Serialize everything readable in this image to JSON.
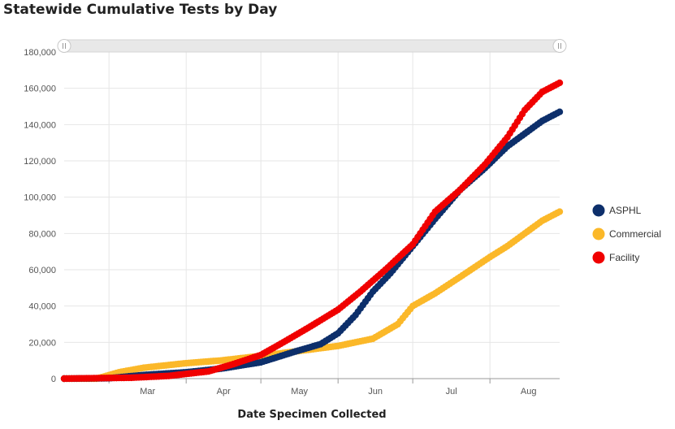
{
  "title": "Statewide Cumulative Tests by Day",
  "chart_data": {
    "type": "scatter",
    "title": "Statewide Cumulative Tests by Day",
    "xlabel": "Date Specimen Collected",
    "ylabel": "",
    "ylim": [
      0,
      180000
    ],
    "yticks": [
      "0",
      "20,000",
      "40,000",
      "60,000",
      "80,000",
      "100,000",
      "120,000",
      "140,000",
      "160,000",
      "180,000"
    ],
    "xlim": [
      "2020-02-12",
      "2020-08-29"
    ],
    "xticks": [
      {
        "label": "Mar",
        "date": "2020-03-01"
      },
      {
        "label": "Apr",
        "date": "2020-04-01"
      },
      {
        "label": "May",
        "date": "2020-05-01"
      },
      {
        "label": "Jun",
        "date": "2020-06-01"
      },
      {
        "label": "Jul",
        "date": "2020-07-01"
      },
      {
        "label": "Aug",
        "date": "2020-08-01"
      }
    ],
    "grid": true,
    "legend_position": "right",
    "range_slider": true,
    "series": [
      {
        "name": "ASPHL",
        "color": "#0d2f6b",
        "points": [
          [
            "2020-02-12",
            0
          ],
          [
            "2020-03-01",
            200
          ],
          [
            "2020-03-15",
            2000
          ],
          [
            "2020-04-01",
            3500
          ],
          [
            "2020-04-15",
            5500
          ],
          [
            "2020-05-01",
            9000
          ],
          [
            "2020-05-15",
            15000
          ],
          [
            "2020-05-25",
            19000
          ],
          [
            "2020-06-01",
            25000
          ],
          [
            "2020-06-08",
            35000
          ],
          [
            "2020-06-15",
            48000
          ],
          [
            "2020-06-22",
            58000
          ],
          [
            "2020-07-01",
            73000
          ],
          [
            "2020-07-10",
            88000
          ],
          [
            "2020-07-20",
            104000
          ],
          [
            "2020-07-30",
            116000
          ],
          [
            "2020-08-08",
            128000
          ],
          [
            "2020-08-15",
            135000
          ],
          [
            "2020-08-22",
            142000
          ],
          [
            "2020-08-29",
            147000
          ]
        ]
      },
      {
        "name": "Commercial",
        "color": "#fbb829",
        "points": [
          [
            "2020-02-12",
            0
          ],
          [
            "2020-02-25",
            0
          ],
          [
            "2020-03-05",
            3500
          ],
          [
            "2020-03-15",
            6000
          ],
          [
            "2020-04-01",
            8500
          ],
          [
            "2020-04-15",
            10000
          ],
          [
            "2020-05-01",
            12500
          ],
          [
            "2020-05-15",
            15000
          ],
          [
            "2020-06-01",
            18000
          ],
          [
            "2020-06-15",
            22000
          ],
          [
            "2020-06-25",
            30000
          ],
          [
            "2020-07-01",
            40000
          ],
          [
            "2020-07-10",
            47000
          ],
          [
            "2020-07-20",
            56000
          ],
          [
            "2020-08-01",
            67000
          ],
          [
            "2020-08-08",
            73000
          ],
          [
            "2020-08-15",
            80000
          ],
          [
            "2020-08-22",
            87000
          ],
          [
            "2020-08-29",
            92000
          ]
        ]
      },
      {
        "name": "Facility",
        "color": "#f00000",
        "points": [
          [
            "2020-02-12",
            0
          ],
          [
            "2020-03-10",
            500
          ],
          [
            "2020-03-25",
            1500
          ],
          [
            "2020-04-10",
            4000
          ],
          [
            "2020-04-20",
            8000
          ],
          [
            "2020-05-01",
            13000
          ],
          [
            "2020-05-10",
            20000
          ],
          [
            "2020-05-20",
            28000
          ],
          [
            "2020-06-01",
            38000
          ],
          [
            "2020-06-10",
            48000
          ],
          [
            "2020-06-20",
            60000
          ],
          [
            "2020-07-01",
            74000
          ],
          [
            "2020-07-10",
            92000
          ],
          [
            "2020-07-20",
            104000
          ],
          [
            "2020-07-30",
            118000
          ],
          [
            "2020-08-08",
            133000
          ],
          [
            "2020-08-15",
            148000
          ],
          [
            "2020-08-22",
            158000
          ],
          [
            "2020-08-29",
            163000
          ]
        ]
      }
    ]
  }
}
